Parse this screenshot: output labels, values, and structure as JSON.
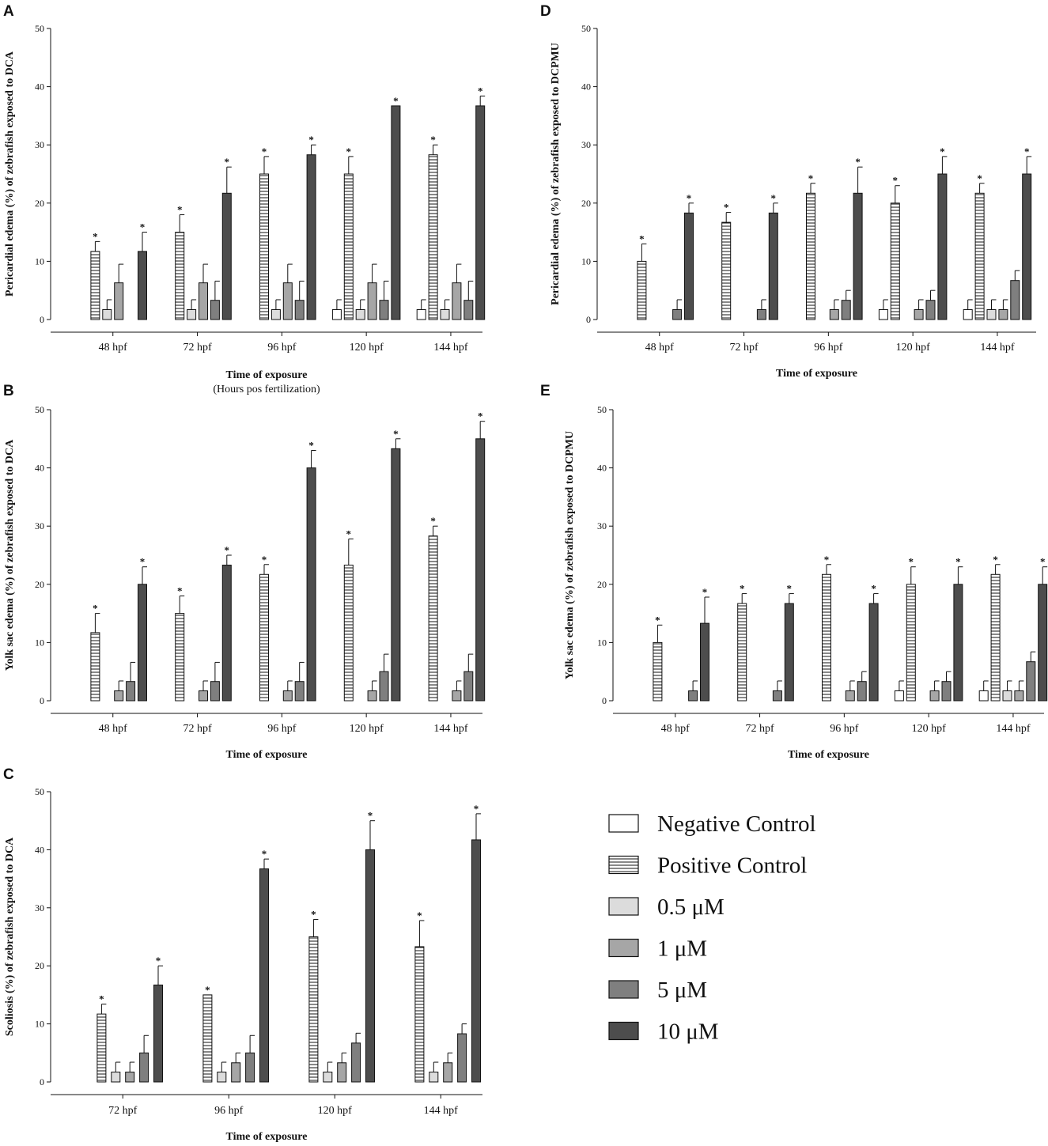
{
  "colors": {
    "negative_control": "#ffffff",
    "positive_control": "#ffffff",
    "c0_5": "#dcdcdc",
    "c1": "#a6a6a6",
    "c5": "#7f7f7f",
    "c10": "#4d4d4d",
    "stroke": "#111111"
  },
  "legend": {
    "items": [
      {
        "label": "Negative Control",
        "series": "negative_control"
      },
      {
        "label": "Positive Control",
        "series": "positive_control"
      },
      {
        "label": "0.5 μM",
        "series": "c0_5"
      },
      {
        "label": "1 μM",
        "series": "c1"
      },
      {
        "label": "5 μM",
        "series": "c5"
      },
      {
        "label": "10 μM",
        "series": "c10"
      }
    ]
  },
  "chart_data": [
    {
      "id": "A",
      "panel": "A",
      "type": "bar",
      "ylabel": "Pericardial edema (%) of zebrafish exposed to DCA",
      "xlabel": "Time of exposure",
      "subtitle": "(Hours pos fertilization)",
      "ylim": [
        0,
        50
      ],
      "yticks": [
        "0",
        "10",
        "20",
        "30",
        "40",
        "50"
      ],
      "categories": [
        "48 hpf",
        "72 hpf",
        "96 hpf",
        "120 hpf",
        "144 hpf"
      ],
      "series": [
        {
          "name": "Negative Control",
          "key": "negative_control",
          "values": [
            0,
            0,
            0,
            1.7,
            1.7
          ],
          "errors": [
            0,
            0,
            0,
            1.7,
            1.7
          ],
          "sig": [
            false,
            false,
            false,
            false,
            false
          ]
        },
        {
          "name": "Positive Control",
          "key": "positive_control",
          "values": [
            11.7,
            15,
            25,
            25,
            28.3
          ],
          "errors": [
            1.7,
            3,
            3,
            3,
            1.7
          ],
          "sig": [
            true,
            true,
            true,
            true,
            true
          ]
        },
        {
          "name": "0.5 μM",
          "key": "c0_5",
          "values": [
            1.7,
            1.7,
            1.7,
            1.7,
            1.7
          ],
          "errors": [
            1.7,
            1.7,
            1.7,
            1.7,
            1.7
          ],
          "sig": [
            false,
            false,
            false,
            false,
            false
          ]
        },
        {
          "name": "1 μM",
          "key": "c1",
          "values": [
            6.3,
            6.3,
            6.3,
            6.3,
            6.3
          ],
          "errors": [
            3.2,
            3.2,
            3.2,
            3.2,
            3.2
          ],
          "sig": [
            false,
            false,
            false,
            false,
            false
          ]
        },
        {
          "name": "5 μM",
          "key": "c5",
          "values": [
            0,
            3.3,
            3.3,
            3.3,
            3.3
          ],
          "errors": [
            0,
            3.3,
            3.3,
            3.3,
            3.3
          ],
          "sig": [
            false,
            false,
            false,
            false,
            false
          ]
        },
        {
          "name": "10 μM",
          "key": "c10",
          "values": [
            11.7,
            21.7,
            28.3,
            36.7,
            36.7
          ],
          "errors": [
            3.3,
            4.5,
            1.7,
            0,
            1.7
          ],
          "sig": [
            true,
            true,
            true,
            true,
            true
          ]
        }
      ]
    },
    {
      "id": "B",
      "panel": "B",
      "type": "bar",
      "ylabel": "Yolk sac edema (%) of zebrafish exposed to DCA",
      "xlabel": "Time of exposure",
      "ylim": [
        0,
        50
      ],
      "yticks": [
        "0",
        "10",
        "20",
        "30",
        "40",
        "50"
      ],
      "categories": [
        "48 hpf",
        "72 hpf",
        "96 hpf",
        "120 hpf",
        "144 hpf"
      ],
      "series": [
        {
          "name": "Negative Control",
          "key": "negative_control",
          "values": [
            0,
            0,
            0,
            0,
            0
          ],
          "errors": [
            0,
            0,
            0,
            0,
            0
          ],
          "sig": [
            false,
            false,
            false,
            false,
            false
          ]
        },
        {
          "name": "Positive Control",
          "key": "positive_control",
          "values": [
            11.7,
            15,
            21.7,
            23.3,
            28.3
          ],
          "errors": [
            3.3,
            3,
            1.7,
            4.5,
            1.7
          ],
          "sig": [
            true,
            true,
            true,
            true,
            true
          ]
        },
        {
          "name": "0.5 μM",
          "key": "c0_5",
          "values": [
            0,
            0,
            0,
            0,
            0
          ],
          "errors": [
            0,
            0,
            0,
            0,
            0
          ],
          "sig": [
            false,
            false,
            false,
            false,
            false
          ]
        },
        {
          "name": "1 μM",
          "key": "c1",
          "values": [
            1.7,
            1.7,
            1.7,
            1.7,
            1.7
          ],
          "errors": [
            1.7,
            1.7,
            1.7,
            1.7,
            1.7
          ],
          "sig": [
            false,
            false,
            false,
            false,
            false
          ]
        },
        {
          "name": "5 μM",
          "key": "c5",
          "values": [
            3.3,
            3.3,
            3.3,
            5,
            5
          ],
          "errors": [
            3.3,
            3.3,
            3.3,
            3,
            3
          ],
          "sig": [
            false,
            false,
            false,
            false,
            false
          ]
        },
        {
          "name": "10 μM",
          "key": "c10",
          "values": [
            20,
            23.3,
            40,
            43.3,
            45
          ],
          "errors": [
            3,
            1.7,
            3,
            1.7,
            3
          ],
          "sig": [
            true,
            true,
            true,
            true,
            true
          ]
        }
      ]
    },
    {
      "id": "C",
      "panel": "C",
      "type": "bar",
      "ylabel": "Scoliosis (%) of zebrafish exposed to DCA",
      "xlabel": "Time of exposure",
      "ylim": [
        0,
        50
      ],
      "yticks": [
        "0",
        "10",
        "20",
        "30",
        "40",
        "50"
      ],
      "categories": [
        "72 hpf",
        "96 hpf",
        "120 hpf",
        "144 hpf"
      ],
      "series": [
        {
          "name": "Negative Control",
          "key": "negative_control",
          "values": [
            0,
            0,
            0,
            0
          ],
          "errors": [
            0,
            0,
            0,
            0
          ],
          "sig": [
            false,
            false,
            false,
            false
          ]
        },
        {
          "name": "Positive Control",
          "key": "positive_control",
          "values": [
            11.7,
            15,
            25,
            23.3
          ],
          "errors": [
            1.7,
            0,
            3,
            4.5
          ],
          "sig": [
            true,
            true,
            true,
            true
          ]
        },
        {
          "name": "0.5 μM",
          "key": "c0_5",
          "values": [
            1.7,
            1.7,
            1.7,
            1.7
          ],
          "errors": [
            1.7,
            1.7,
            1.7,
            1.7
          ],
          "sig": [
            false,
            false,
            false,
            false
          ]
        },
        {
          "name": "1 μM",
          "key": "c1",
          "values": [
            1.7,
            3.3,
            3.3,
            3.3
          ],
          "errors": [
            1.7,
            1.7,
            1.7,
            1.7
          ],
          "sig": [
            false,
            false,
            false,
            false
          ]
        },
        {
          "name": "5 μM",
          "key": "c5",
          "values": [
            5,
            5,
            6.7,
            8.3
          ],
          "errors": [
            3,
            3,
            1.7,
            1.7
          ],
          "sig": [
            false,
            false,
            false,
            false
          ]
        },
        {
          "name": "10 μM",
          "key": "c10",
          "values": [
            16.7,
            36.7,
            40,
            41.7
          ],
          "errors": [
            3.3,
            1.7,
            5,
            4.5
          ],
          "sig": [
            true,
            true,
            true,
            true
          ]
        }
      ]
    },
    {
      "id": "D",
      "panel": "D",
      "type": "bar",
      "ylabel": "Pericardial edema (%) of zebrafish exposed to DCPMU",
      "xlabel": "Time of exposure",
      "ylim": [
        0,
        50
      ],
      "yticks": [
        "0",
        "10",
        "20",
        "30",
        "40",
        "50"
      ],
      "categories": [
        "48 hpf",
        "72 hpf",
        "96 hpf",
        "120 hpf",
        "144 hpf"
      ],
      "series": [
        {
          "name": "Negative Control",
          "key": "negative_control",
          "values": [
            0,
            0,
            0,
            1.7,
            1.7
          ],
          "errors": [
            0,
            0,
            0,
            1.7,
            1.7
          ],
          "sig": [
            false,
            false,
            false,
            false,
            false
          ]
        },
        {
          "name": "Positive Control",
          "key": "positive_control",
          "values": [
            10,
            16.7,
            21.7,
            20,
            21.7
          ],
          "errors": [
            3,
            1.7,
            1.7,
            3,
            1.7
          ],
          "sig": [
            true,
            true,
            true,
            true,
            true
          ]
        },
        {
          "name": "0.5 μM",
          "key": "c0_5",
          "values": [
            0,
            0,
            0,
            0,
            1.7
          ],
          "errors": [
            0,
            0,
            0,
            0,
            1.7
          ],
          "sig": [
            false,
            false,
            false,
            false,
            false
          ]
        },
        {
          "name": "1 μM",
          "key": "c1",
          "values": [
            0,
            0,
            1.7,
            1.7,
            1.7
          ],
          "errors": [
            0,
            0,
            1.7,
            1.7,
            1.7
          ],
          "sig": [
            false,
            false,
            false,
            false,
            false
          ]
        },
        {
          "name": "5 μM",
          "key": "c5",
          "values": [
            1.7,
            1.7,
            3.3,
            3.3,
            6.7
          ],
          "errors": [
            1.7,
            1.7,
            1.7,
            1.7,
            1.7
          ],
          "sig": [
            false,
            false,
            false,
            false,
            false
          ]
        },
        {
          "name": "10 μM",
          "key": "c10",
          "values": [
            18.3,
            18.3,
            21.7,
            25,
            25
          ],
          "errors": [
            1.7,
            1.7,
            4.5,
            3,
            3
          ],
          "sig": [
            true,
            true,
            true,
            true,
            true
          ]
        }
      ]
    },
    {
      "id": "E",
      "panel": "E",
      "type": "bar",
      "ylabel": "Yolk sac edema (%) of zebrafish exposed to DCPMU",
      "xlabel": "Time of exposure",
      "ylim": [
        0,
        50
      ],
      "yticks": [
        "0",
        "10",
        "20",
        "30",
        "40",
        "50"
      ],
      "categories": [
        "48 hpf",
        "72 hpf",
        "96 hpf",
        "120 hpf",
        "144 hpf"
      ],
      "series": [
        {
          "name": "Negative Control",
          "key": "negative_control",
          "values": [
            0,
            0,
            0,
            1.7,
            1.7
          ],
          "errors": [
            0,
            0,
            0,
            1.7,
            1.7
          ],
          "sig": [
            false,
            false,
            false,
            false,
            false
          ]
        },
        {
          "name": "Positive Control",
          "key": "positive_control",
          "values": [
            10,
            16.7,
            21.7,
            20,
            21.7
          ],
          "errors": [
            3,
            1.7,
            1.7,
            3,
            1.7
          ],
          "sig": [
            true,
            true,
            true,
            true,
            true
          ]
        },
        {
          "name": "0.5 μM",
          "key": "c0_5",
          "values": [
            0,
            0,
            0,
            0,
            1.7
          ],
          "errors": [
            0,
            0,
            0,
            0,
            1.7
          ],
          "sig": [
            false,
            false,
            false,
            false,
            false
          ]
        },
        {
          "name": "1 μM",
          "key": "c1",
          "values": [
            0,
            0,
            1.7,
            1.7,
            1.7
          ],
          "errors": [
            0,
            0,
            1.7,
            1.7,
            1.7
          ],
          "sig": [
            false,
            false,
            false,
            false,
            false
          ]
        },
        {
          "name": "5 μM",
          "key": "c5",
          "values": [
            1.7,
            1.7,
            3.3,
            3.3,
            6.7
          ],
          "errors": [
            1.7,
            1.7,
            1.7,
            1.7,
            1.7
          ],
          "sig": [
            false,
            false,
            false,
            false,
            false
          ]
        },
        {
          "name": "10 μM",
          "key": "c10",
          "values": [
            13.3,
            16.7,
            16.7,
            20,
            20
          ],
          "errors": [
            4.5,
            1.7,
            1.7,
            3,
            3
          ],
          "sig": [
            true,
            true,
            true,
            true,
            true
          ]
        }
      ]
    }
  ]
}
